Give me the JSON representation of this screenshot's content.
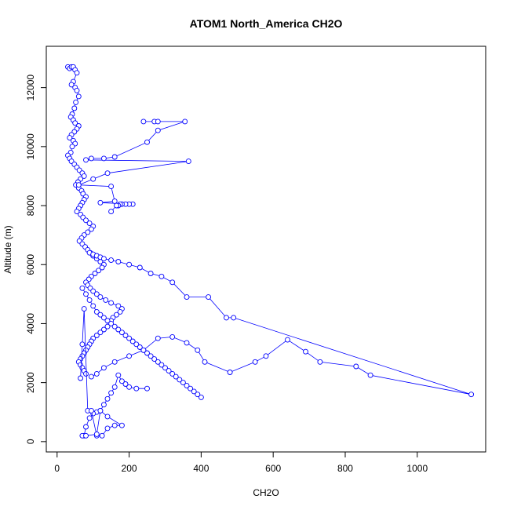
{
  "chart_data": {
    "type": "scatter",
    "title": "ATOM1 North_America CH2O",
    "xlabel": "CH2O",
    "ylabel": "Altitude (m)",
    "xlim": [
      -30,
      1190
    ],
    "ylim": [
      -350,
      13400
    ],
    "x_ticks": [
      0,
      200,
      400,
      600,
      800,
      1000
    ],
    "y_ticks": [
      0,
      2000,
      4000,
      6000,
      8000,
      10000,
      12000
    ],
    "grid": false,
    "legend": "none",
    "marker": "open-circle",
    "connect_points": true,
    "color": "#0000ff",
    "series": [
      {
        "x": [
          30,
          35,
          40,
          45,
          50,
          55,
          45,
          40,
          50,
          55,
          60,
          52,
          48,
          42,
          38,
          45,
          50,
          60,
          55,
          48,
          40,
          35,
          45,
          50,
          42,
          38,
          30,
          35,
          40,
          48,
          55,
          62,
          70,
          75,
          65,
          58,
          52,
          60,
          68,
          72,
          80,
          75,
          70,
          65,
          60,
          55,
          65,
          72,
          80,
          90,
          100,
          95,
          85,
          75,
          68,
          62,
          70,
          78,
          85,
          92,
          100,
          110,
          120,
          130,
          125,
          115,
          105,
          95,
          88,
          80,
          85,
          92,
          100,
          110,
          120,
          135,
          150,
          170,
          180,
          175,
          165,
          155,
          150,
          145,
          140,
          130,
          120,
          110,
          100,
          95,
          90,
          85,
          80,
          75,
          70,
          65,
          60,
          65,
          70,
          75,
          80
        ],
        "y": [
          12700,
          12650,
          12700,
          12700,
          12600,
          12500,
          12200,
          12100,
          12000,
          11900,
          11700,
          11500,
          11300,
          11100,
          11000,
          10900,
          10800,
          10700,
          10600,
          10500,
          10400,
          10300,
          10200,
          10100,
          10000,
          9800,
          9700,
          9600,
          9500,
          9400,
          9300,
          9200,
          9100,
          9000,
          8900,
          8800,
          8700,
          8600,
          8500,
          8400,
          8300,
          8200,
          8100,
          8000,
          7900,
          7800,
          7700,
          7600,
          7500,
          7400,
          7300,
          7200,
          7100,
          7000,
          6900,
          6800,
          6700,
          6600,
          6500,
          6400,
          6300,
          6200,
          6100,
          6000,
          5900,
          5800,
          5700,
          5600,
          5500,
          5400,
          5300,
          5200,
          5100,
          5000,
          4900,
          4800,
          4700,
          4600,
          4500,
          4400,
          4300,
          4200,
          4100,
          4000,
          3900,
          3800,
          3700,
          3600,
          3500,
          3400,
          3300,
          3200,
          3100,
          3000,
          2900,
          2800,
          2700,
          2600,
          2500,
          2400,
          2300
        ]
      },
      {
        "x": [
          240,
          270,
          280,
          355,
          280,
          250,
          160,
          130,
          95,
          80,
          365,
          140,
          100,
          60,
          150,
          160,
          120,
          210,
          200,
          190,
          180,
          175,
          170,
          165,
          150
        ],
        "y": [
          10850,
          10850,
          10850,
          10850,
          10550,
          10150,
          9650,
          9600,
          9600,
          9550,
          9500,
          9100,
          8900,
          8700,
          8650,
          8150,
          8100,
          8050,
          8050,
          8050,
          8050,
          8050,
          8000,
          8000,
          7800
        ]
      },
      {
        "x": [
          90,
          100,
          110,
          120,
          130,
          150,
          170,
          200,
          230,
          260,
          290,
          320,
          360,
          420,
          470,
          490,
          1150,
          870,
          830,
          730,
          690,
          640,
          580,
          550,
          480,
          410,
          390,
          360,
          320,
          280,
          240,
          200,
          160,
          130,
          110,
          95
        ],
        "y": [
          6400,
          6350,
          6300,
          6250,
          6200,
          6150,
          6100,
          6000,
          5900,
          5700,
          5600,
          5400,
          4900,
          4900,
          4200,
          4200,
          1600,
          2250,
          2550,
          2700,
          3050,
          3450,
          2900,
          2700,
          2350,
          2700,
          3100,
          3350,
          3550,
          3500,
          3100,
          2900,
          2700,
          2500,
          2300,
          2200
        ]
      },
      {
        "x": [
          70,
          80,
          90,
          100,
          110,
          120,
          130,
          140,
          150,
          160,
          170,
          180,
          190,
          200,
          210,
          220,
          230,
          240,
          250,
          260,
          270,
          280,
          290,
          300,
          310,
          320,
          330,
          340,
          350,
          360,
          370,
          380,
          390,
          400
        ],
        "y": [
          5200,
          5000,
          4800,
          4600,
          4400,
          4300,
          4200,
          4100,
          4000,
          3900,
          3800,
          3700,
          3600,
          3500,
          3400,
          3300,
          3200,
          3100,
          3000,
          2900,
          2800,
          2700,
          2600,
          2500,
          2400,
          2300,
          2200,
          2100,
          2000,
          1900,
          1800,
          1700,
          1600,
          1500
        ]
      },
      {
        "x": [
          250,
          220,
          200,
          190,
          180,
          170,
          160,
          150,
          140,
          130,
          120,
          110,
          100,
          90,
          80,
          75,
          70
        ],
        "y": [
          1800,
          1800,
          1850,
          1950,
          2050,
          2250,
          1850,
          1650,
          1450,
          1250,
          1050,
          1000,
          950,
          800,
          500,
          200,
          200
        ]
      },
      {
        "x": [
          65,
          70,
          75,
          85,
          95,
          110,
          125,
          140,
          160,
          180,
          140,
          120,
          110,
          80
        ],
        "y": [
          2150,
          3300,
          4500,
          1050,
          1050,
          200,
          200,
          450,
          550,
          550,
          850,
          1050,
          250,
          200
        ]
      }
    ]
  }
}
